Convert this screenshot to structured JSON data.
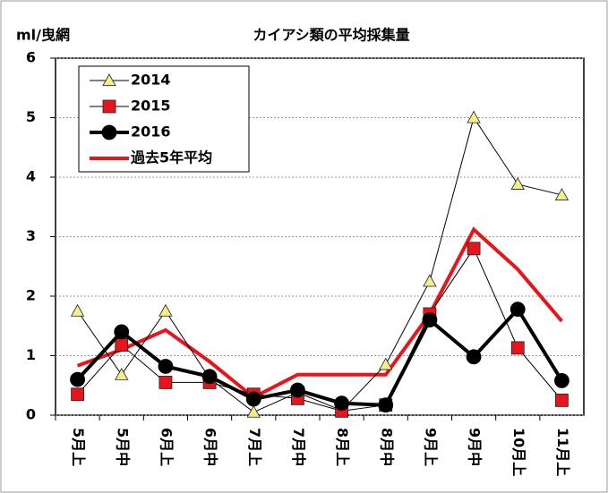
{
  "chart_data": {
    "type": "line",
    "title": "カイアシ類の平均採集量",
    "y_label": "ml/曳網",
    "categories": [
      "5月上",
      "5月中",
      "6月上",
      "6月中",
      "7月上",
      "7月中",
      "8月上",
      "8月中",
      "9月上",
      "9月中",
      "10月上",
      "11月上"
    ],
    "series": [
      {
        "name": "2014",
        "color": "#f3ee8c",
        "marker": "triangle",
        "values": [
          1.75,
          0.68,
          1.75,
          0.62,
          0.05,
          0.38,
          0.08,
          0.85,
          2.25,
          5.0,
          3.88,
          3.7
        ]
      },
      {
        "name": "2015",
        "color": "#e8141c",
        "marker": "square",
        "values": [
          0.35,
          1.18,
          0.55,
          0.55,
          0.35,
          0.28,
          0.07,
          0.17,
          1.7,
          2.8,
          1.13,
          0.25
        ]
      },
      {
        "name": "2016",
        "color": "#000000",
        "marker": "circle",
        "values": [
          0.6,
          1.4,
          0.82,
          0.65,
          0.27,
          0.42,
          0.2,
          0.17,
          1.6,
          0.98,
          1.78,
          0.58
        ]
      },
      {
        "name": "過去5年平均",
        "color": "#e8141c",
        "marker": "none",
        "values": [
          0.83,
          1.1,
          1.43,
          0.9,
          0.3,
          0.68,
          0.68,
          0.68,
          1.7,
          3.12,
          2.45,
          1.58
        ]
      }
    ],
    "ylim": [
      0,
      6
    ],
    "yticks": [
      0,
      1,
      2,
      3,
      4,
      5,
      6
    ],
    "grid": true,
    "legend": "upper left"
  }
}
